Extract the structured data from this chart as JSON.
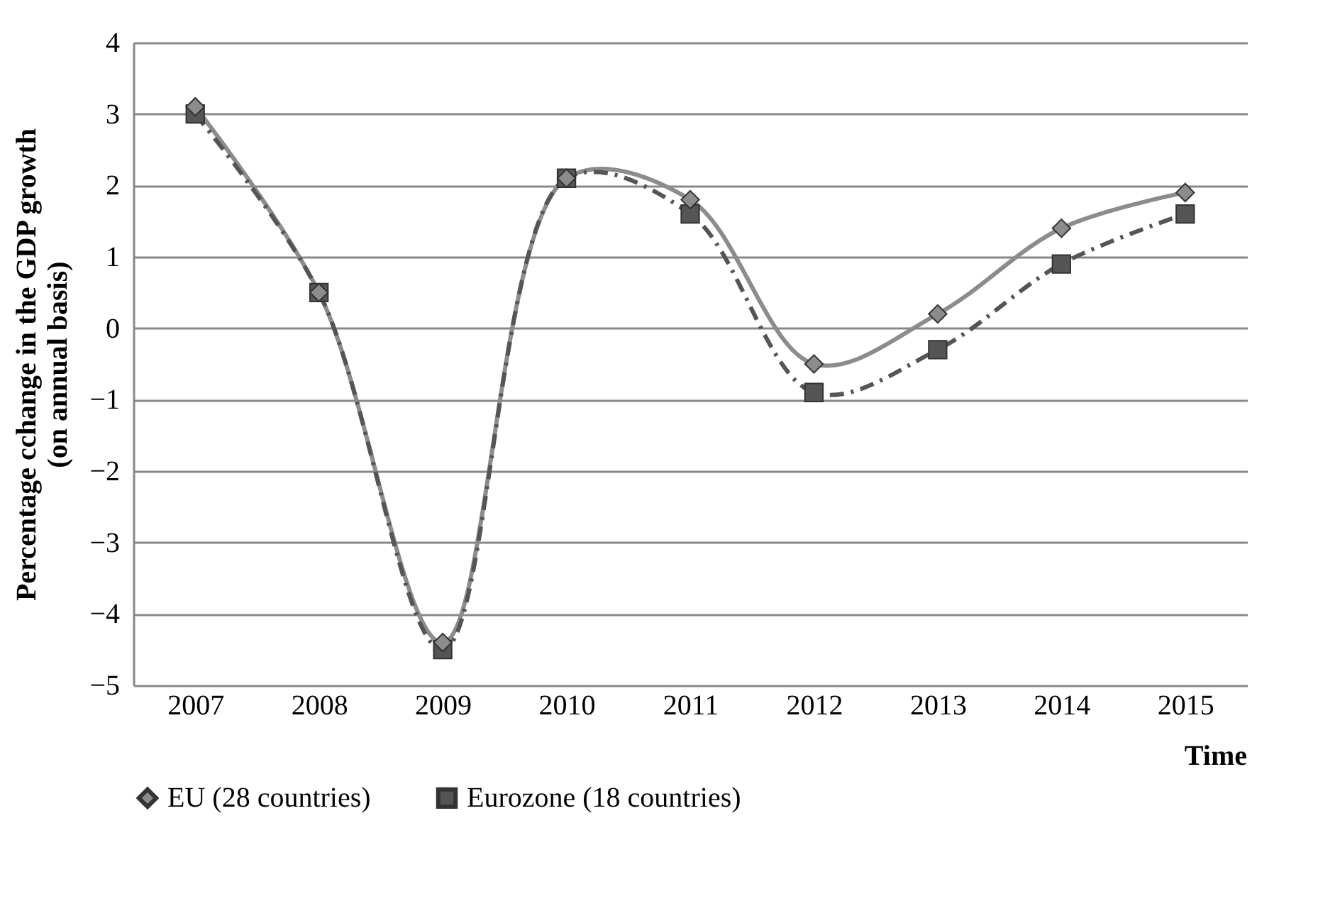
{
  "chart_data": {
    "type": "line",
    "categories": [
      "2007",
      "2008",
      "2009",
      "2010",
      "2011",
      "2012",
      "2013",
      "2014",
      "2015"
    ],
    "series": [
      {
        "name": "EU (28 countries)",
        "color": "#8c8c8c",
        "marker": "diamond",
        "line_style": "solid",
        "values": [
          3.1,
          0.5,
          -4.4,
          2.1,
          1.8,
          -0.5,
          0.2,
          1.4,
          1.9
        ]
      },
      {
        "name": "Eurozone (18 countries)",
        "color": "#555555",
        "marker": "square",
        "line_style": "dashed",
        "values": [
          3.0,
          0.5,
          -4.5,
          2.1,
          1.6,
          -0.9,
          -0.3,
          0.9,
          1.6
        ]
      }
    ],
    "xlabel": "Time",
    "ylabel": "Percentage cchange in the GDP growth\n(on annual basis)",
    "ylim": [
      -5,
      4
    ],
    "yticks": [
      -5,
      -4,
      -3,
      -2,
      -1,
      0,
      1,
      2,
      3,
      4
    ],
    "grid": "y",
    "legend": "bottom"
  }
}
